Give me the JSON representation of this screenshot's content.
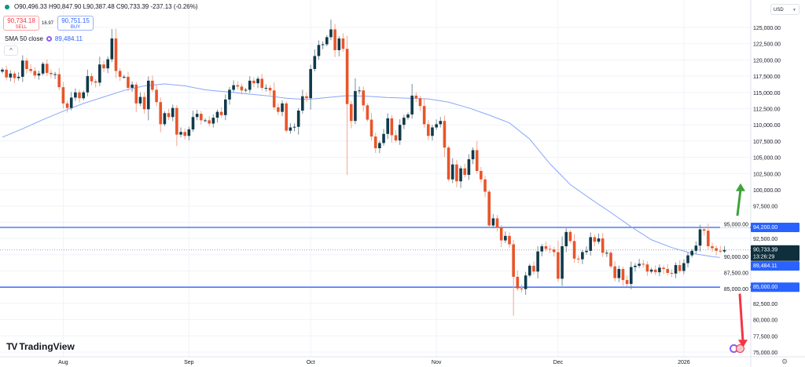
{
  "header": {
    "ohlc_text": "O90,496.33 H90,847.90 L90,387.48 C90,733.39 -237.13 (-0.26%)",
    "sell_price": "90,734.18",
    "sell_label": "SELL",
    "spread": "16.97",
    "buy_price": "90,751.15",
    "buy_label": "BUY",
    "sma_label": "SMA 50 close",
    "sma_value": "89,484.11",
    "collapse_icon": "^",
    "currency": "USD"
  },
  "branding": {
    "logo_text": "TradingView"
  },
  "colors": {
    "up": "#0f3a4a",
    "down": "#e8552a",
    "level": "#2962ff",
    "sma": "#8aa6f7",
    "arrow_up": "#3fa33a",
    "arrow_down": "#f23645"
  },
  "chart_data": {
    "type": "candlestick",
    "title": "",
    "xlabel": "",
    "ylabel": "",
    "ylim": [
      75000,
      125000
    ],
    "y_ticks": [
      "75,000.00",
      "77,500.00",
      "80,000.00",
      "82,500.00",
      "85,000.00",
      "87,500.00",
      "90,000.00",
      "92,500.00",
      "95,000.00",
      "97,500.00",
      "100,000.00",
      "102,500.00",
      "105,000.00",
      "107,500.00",
      "110,000.00",
      "112,500.00",
      "115,000.00",
      "117,500.00",
      "120,000.00",
      "122,500.00",
      "125,000.00"
    ],
    "x_ticks": [
      {
        "label": "Aug",
        "day": 15
      },
      {
        "label": "Sep",
        "day": 46
      },
      {
        "label": "Oct",
        "day": 76
      },
      {
        "label": "Nov",
        "day": 107
      },
      {
        "label": "Dec",
        "day": 137
      },
      {
        "label": "2026",
        "day": 168
      }
    ],
    "start_date": "2025-07-17",
    "interval": "1D",
    "first_open": 118.2,
    "closes_thousands": [
      118.5,
      117.3,
      117.9,
      117.2,
      117.4,
      119.9,
      118.6,
      118.3,
      117.6,
      117.9,
      119.4,
      118.0,
      117.8,
      117.8,
      115.8,
      113.3,
      112.6,
      114.2,
      115.0,
      114.1,
      115.0,
      117.5,
      116.7,
      116.5,
      119.3,
      118.7,
      120.1,
      123.3,
      118.3,
      117.4,
      117.4,
      115.7,
      116.2,
      113.3,
      114.3,
      112.4,
      116.8,
      115.4,
      113.5,
      110.1,
      111.8,
      111.2,
      112.6,
      108.5,
      108.9,
      108.3,
      109.3,
      111.2,
      111.7,
      110.7,
      110.7,
      110.2,
      111.1,
      112.0,
      111.5,
      113.9,
      115.4,
      116.1,
      115.9,
      115.3,
      115.4,
      116.8,
      116.4,
      117.1,
      115.7,
      115.7,
      115.3,
      112.7,
      112.0,
      113.3,
      109.1,
      109.6,
      109.7,
      112.2,
      114.4,
      114.1,
      118.6,
      120.6,
      122.3,
      122.4,
      123.5,
      124.7,
      121.5,
      123.3,
      121.7,
      113.2,
      110.6,
      115.2,
      115.3,
      113.0,
      110.8,
      108.2,
      106.4,
      107.2,
      108.6,
      111.0,
      108.4,
      107.6,
      110.0,
      111.1,
      111.6,
      114.5,
      114.1,
      112.9,
      110.1,
      108.3,
      109.6,
      110.1,
      110.6,
      106.5,
      101.6,
      103.9,
      101.3,
      103.3,
      102.3,
      104.7,
      106.1,
      102.9,
      101.6,
      99.7,
      94.5,
      95.6,
      94.2,
      92.2,
      92.9,
      91.6,
      86.6,
      84.8,
      84.7,
      86.8,
      88.3,
      87.4,
      90.5,
      91.3,
      90.9,
      90.8,
      90.4,
      86.3,
      91.3,
      93.5,
      92.1,
      89.4,
      89.3,
      90.4,
      90.6,
      92.7,
      92.0,
      92.5,
      90.3,
      90.3,
      88.2,
      86.4,
      87.8,
      86.1,
      85.5,
      88.1,
      88.3,
      88.6,
      88.5,
      87.4,
      87.7,
      87.3,
      88.0,
      87.8,
      87.2,
      87.1,
      88.4,
      87.5,
      88.7,
      89.9,
      90.6,
      91.4,
      93.9,
      93.7,
      91.3,
      91.0,
      90.6,
      90.5,
      90.733
    ],
    "notable_wicks_thousands": [
      {
        "day": 81,
        "high": 126.2
      },
      {
        "day": 85,
        "low": 102.3
      },
      {
        "day": 126,
        "low": 80.6
      },
      {
        "day": 101,
        "high": 116.3
      }
    ],
    "sma50": {
      "name": "SMA 50 close",
      "sample_every_days": 5,
      "values_thousands": [
        108.1,
        109.4,
        110.8,
        112.1,
        113.3,
        114.3,
        115.3,
        116.0,
        116.3,
        116.0,
        115.4,
        115.1,
        114.8,
        114.5,
        114.1,
        113.9,
        114.2,
        114.5,
        114.4,
        114.2,
        114.1,
        114.0,
        113.5,
        112.6,
        111.5,
        110.3,
        107.8,
        104.0,
        100.8,
        98.6,
        96.5,
        94.3,
        92.3,
        91.1,
        90.2,
        89.7,
        89.5
      ]
    },
    "levels": [
      {
        "label": "94,200.00",
        "value": 94200
      },
      {
        "label": "85,000.00",
        "value": 85000
      }
    ],
    "last_price": {
      "label": "90,733.39",
      "countdown": "13:26:29",
      "value": 90733.39
    },
    "sma_badge": {
      "label": "89,484.11",
      "value": 89484.11
    },
    "annotations": [
      {
        "type": "arrow-up",
        "from": 96000,
        "to": 101000,
        "color": "green"
      },
      {
        "type": "arrow-down",
        "from": 84000,
        "to": 77500,
        "color": "red"
      }
    ]
  }
}
